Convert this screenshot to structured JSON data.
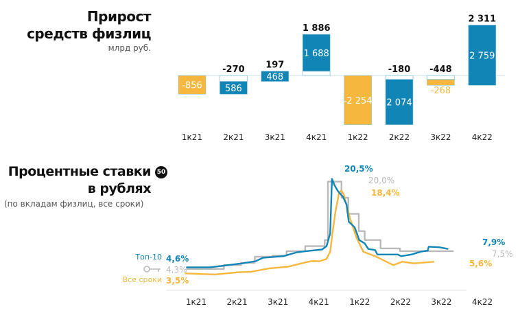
{
  "header_1": {
    "title_line1": "Прирост",
    "title_line2": "средств физлиц",
    "unit": "млрд руб."
  },
  "header_2": {
    "title_line1": "Процентные ставки",
    "title_line2": "в рублях",
    "subtitle": "(по вкладам физлиц, все сроки)",
    "badge": "50"
  },
  "colors": {
    "blue": "#1185b6",
    "yellow": "#f6b73f",
    "gray": "#b9b9b9",
    "white_box_border": "#a8d4e4"
  },
  "chart_data": [
    {
      "type": "bar",
      "subtype": "waterfall",
      "title": "Прирост средств физлиц",
      "ylabel": "млрд руб.",
      "categories": [
        "1к21",
        "2к21",
        "3к21",
        "4к21",
        "1к22",
        "2к22",
        "3к22",
        "4к22"
      ],
      "totals": [
        null,
        "-270",
        "197",
        "1 886",
        null,
        "-180",
        "-448",
        "2 311"
      ],
      "segments": [
        [
          {
            "start": 0,
            "end": -856,
            "color": "yellow",
            "label": "-856"
          }
        ],
        [
          {
            "start": 0,
            "end": -270,
            "color": "white"
          },
          {
            "start": -270,
            "end": -856,
            "color": "blue",
            "label": "586"
          }
        ],
        [
          {
            "start": -270,
            "end": 197,
            "color": "blue",
            "label": "468"
          }
        ],
        [
          {
            "start": 0,
            "end": 197,
            "color": "white"
          },
          {
            "start": 197,
            "end": 1886,
            "color": "blue",
            "label": "1 688"
          }
        ],
        [
          {
            "start": 0,
            "end": -2254,
            "color": "yellow",
            "label": "-2 254"
          }
        ],
        [
          {
            "start": 0,
            "end": -180,
            "color": "white"
          },
          {
            "start": -180,
            "end": -2254,
            "color": "blue",
            "label": "2 074"
          }
        ],
        [
          {
            "start": 0,
            "end": -180,
            "color": "white"
          },
          {
            "start": -180,
            "end": -448,
            "color": "yellow",
            "label": "-268"
          }
        ],
        [
          {
            "start": -448,
            "end": 2311,
            "color": "blue",
            "label": "2 759"
          }
        ]
      ]
    },
    {
      "type": "line",
      "title": "Процентные ставки в рублях",
      "subtitle": "(по вкладам физлиц, все сроки)",
      "x_ticks": [
        "1к21",
        "2к21",
        "3к21",
        "4к21",
        "1к22",
        "2к22",
        "3к22",
        "4к22"
      ],
      "series": [
        {
          "name": "Топ-10",
          "color": "blue",
          "points": [
            [
              "2021-03-09",
              4.6
            ],
            [
              "2021-05-02",
              4.6
            ],
            [
              "2021-06-02",
              4.9
            ],
            [
              "2021-07-12",
              5.3
            ],
            [
              "2021-08-12",
              5.7
            ],
            [
              "2021-08-28",
              6.3
            ],
            [
              "2021-10-13",
              6.6
            ],
            [
              "2021-11-13",
              7.3
            ],
            [
              "2021-12-03",
              7.5
            ],
            [
              "2022-01-08",
              7.8
            ],
            [
              "2022-01-18",
              8.4
            ],
            [
              "2022-01-26",
              10.7
            ],
            [
              "2022-01-30",
              20.5
            ],
            [
              "2022-02-06",
              19.3
            ],
            [
              "2022-02-13",
              18.3
            ],
            [
              "2022-02-24",
              17.3
            ],
            [
              "2022-03-02",
              15.9
            ],
            [
              "2022-03-07",
              12.8
            ],
            [
              "2022-03-20",
              11.8
            ],
            [
              "2022-03-30",
              9.5
            ],
            [
              "2022-04-12",
              8.9
            ],
            [
              "2022-04-20",
              7.9
            ],
            [
              "2022-05-05",
              7.7
            ],
            [
              "2022-05-10",
              6.9
            ],
            [
              "2022-06-25",
              6.9
            ],
            [
              "2022-07-02",
              6.6
            ],
            [
              "2022-07-25",
              6.9
            ],
            [
              "2022-08-15",
              7.4
            ],
            [
              "2022-08-31",
              7.6
            ],
            [
              "2022-09-03",
              8.3
            ],
            [
              "2022-09-26",
              8.2
            ],
            [
              "2022-10-16",
              7.9
            ]
          ]
        },
        {
          "name": "",
          "color": "gray",
          "step": true,
          "points": [
            [
              "2021-03-09",
              4.3
            ],
            [
              "2021-06-02",
              5.0
            ],
            [
              "2021-07-10",
              5.4
            ],
            [
              "2021-08-10",
              6.5
            ],
            [
              "2021-09-19",
              6.7
            ],
            [
              "2021-10-20",
              7.5
            ],
            [
              "2021-12-01",
              8.4
            ],
            [
              "2022-01-14",
              9.5
            ],
            [
              "2022-01-21",
              20.0
            ],
            [
              "2022-02-21",
              17.1
            ],
            [
              "2022-03-06",
              14.2
            ],
            [
              "2022-03-29",
              11.1
            ],
            [
              "2022-04-12",
              9.5
            ],
            [
              "2022-05-17",
              8.0
            ],
            [
              "2022-06-30",
              7.5
            ],
            [
              "2022-10-28",
              7.5
            ]
          ]
        },
        {
          "name": "Все сроки",
          "color": "yellow",
          "points": [
            [
              "2021-03-06",
              3.5
            ],
            [
              "2021-05-12",
              3.3
            ],
            [
              "2021-07-02",
              3.7
            ],
            [
              "2021-08-02",
              3.8
            ],
            [
              "2021-09-12",
              4.4
            ],
            [
              "2021-10-23",
              4.7
            ],
            [
              "2021-11-23",
              5.3
            ],
            [
              "2021-12-13",
              5.7
            ],
            [
              "2022-01-03",
              5.7
            ],
            [
              "2022-01-18",
              6.1
            ],
            [
              "2022-01-26",
              7.4
            ],
            [
              "2022-01-31",
              10.7
            ],
            [
              "2022-02-08",
              14.8
            ],
            [
              "2022-02-16",
              18.1
            ],
            [
              "2022-02-21",
              18.4
            ],
            [
              "2022-02-26",
              17.7
            ],
            [
              "2022-03-09",
              13.6
            ],
            [
              "2022-03-24",
              9.9
            ],
            [
              "2022-04-09",
              7.4
            ],
            [
              "2022-05-05",
              6.6
            ],
            [
              "2022-05-30",
              5.6
            ],
            [
              "2022-06-15",
              5.0
            ],
            [
              "2022-07-05",
              5.6
            ],
            [
              "2022-07-30",
              5.3
            ],
            [
              "2022-09-15",
              5.6
            ]
          ]
        }
      ],
      "annotations": {
        "blue_start": "4,6%",
        "gray_start": "4,3%",
        "yellow_start": "3,5%",
        "blue_peak": "20,5%",
        "gray_peak": "20,0%",
        "yellow_peak": "18,4%",
        "blue_end": "7,9%",
        "gray_end": "7,5%",
        "yellow_end": "5,6%"
      },
      "legend": {
        "top10": "Топ-10",
        "all_terms": "Все сроки"
      }
    }
  ]
}
